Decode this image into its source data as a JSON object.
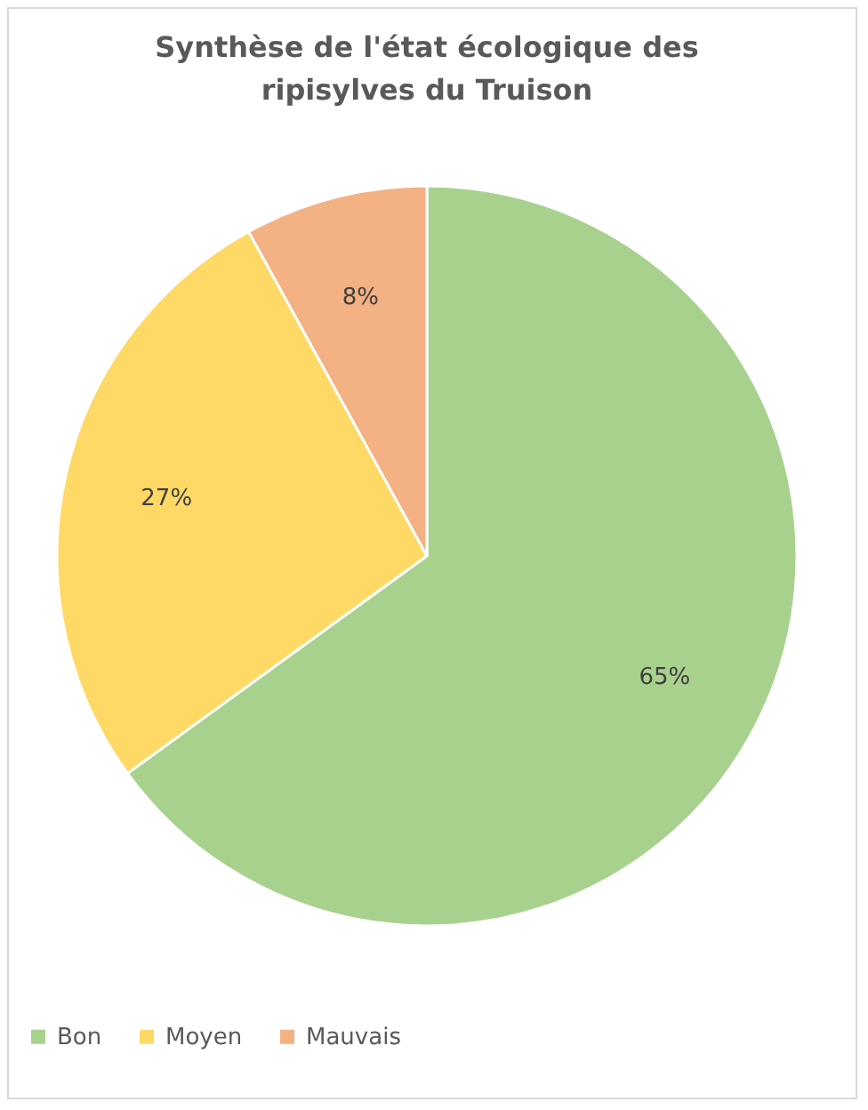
{
  "chart_data": {
    "type": "pie",
    "title": [
      "Synthèse de l'état écologique des",
      "ripisylves du Truison"
    ],
    "categories": [
      "Bon",
      "Moyen",
      "Mauvais"
    ],
    "values": [
      65,
      27,
      8
    ],
    "colors": [
      "#a9d18e",
      "#ffd966",
      "#f4b183"
    ],
    "value_labels": [
      "65%",
      "27%",
      "8%"
    ],
    "legend": "bottom"
  }
}
